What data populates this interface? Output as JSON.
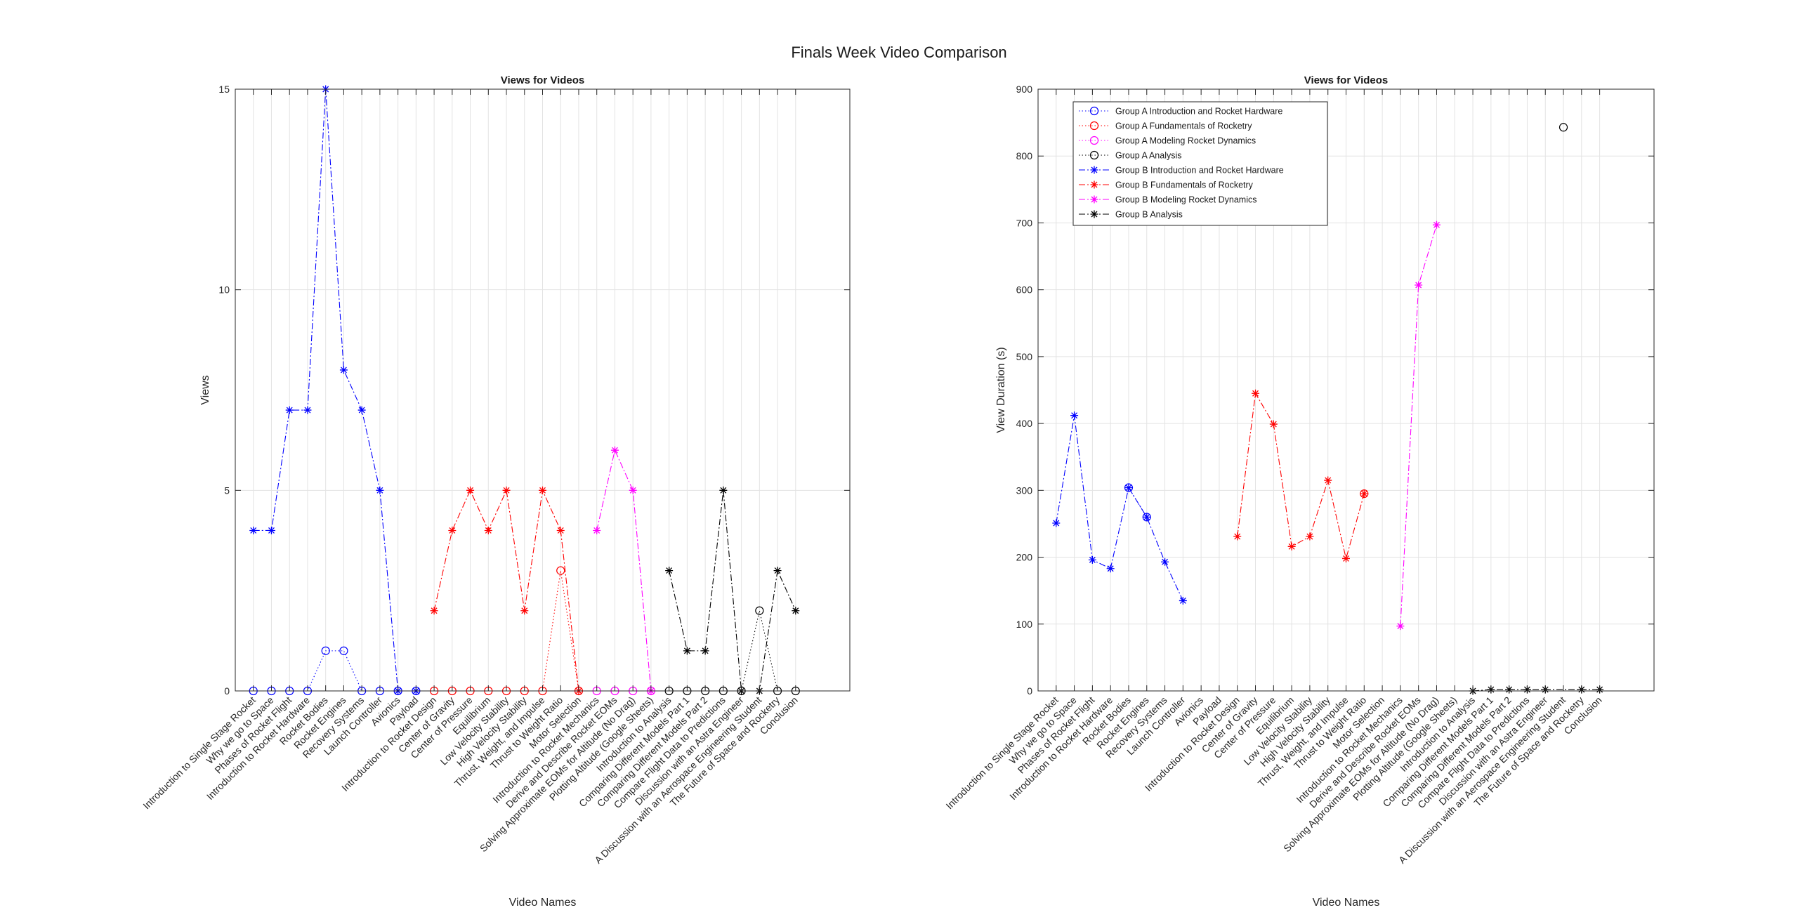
{
  "figure_title": "Finals Week Video Comparison",
  "chart_data": [
    {
      "type": "line",
      "title": "Views for Videos",
      "xlabel": "Video Names",
      "ylabel": "Views",
      "ylim": [
        0,
        15
      ],
      "yticks": [
        0,
        5,
        10,
        15
      ],
      "grid": true,
      "categories": [
        "Introduction to Single Stage Rocket",
        "Why we go to Space",
        "Phases of Rocket Flight",
        "Introduction to Rocket Hardware",
        "Rocket Bodies",
        "Rocket Engines",
        "Recovery Systems",
        "Launch Controller",
        "Avionics",
        "Payload",
        "Introduction to Rocket Design",
        "Center of Gravity",
        "Center of Pressure",
        "Equilibrium",
        "Low Velocity Stability",
        "High Velocity Stability",
        "Thrust, Weight, and Impulse",
        "Thrust to Weight Ratio",
        "Motor Selection",
        "Introduction to Rocket Mechanics",
        "Derive and Describe Rocket EOMs",
        "Solving Approximate EOMs for Altitude (No Drag)",
        "Plotting Altitude (Google Sheets)",
        "Introduction to Analysis",
        "Comparing Different Models Part 1",
        "Comparing Different Models Part 2",
        "Compare Flight Data to Predictions",
        "Discussion with an Astra Engineer",
        "A Discussion with an Aerospace Engineering Student",
        "The Future of Space and Rocketry",
        "Conclusion"
      ],
      "series": [
        {
          "name": "Group A Introduction and Rocket Hardware",
          "color": "#0000ff",
          "marker": "o",
          "style": "dotted",
          "x": [
            1,
            2,
            3,
            4,
            5,
            6,
            7,
            8,
            9,
            10
          ],
          "values": [
            0,
            0,
            0,
            0,
            1,
            1,
            0,
            0,
            0,
            0
          ]
        },
        {
          "name": "Group A Fundamentals of Rocketry",
          "color": "#ff0000",
          "marker": "o",
          "style": "dotted",
          "x": [
            11,
            12,
            13,
            14,
            15,
            16,
            17,
            18,
            19
          ],
          "values": [
            0,
            0,
            0,
            0,
            0,
            0,
            0,
            3,
            0
          ]
        },
        {
          "name": "Group A Modeling Rocket Dynamics",
          "color": "#ff00ff",
          "marker": "o",
          "style": "dotted",
          "x": [
            20,
            21,
            22,
            23
          ],
          "values": [
            0,
            0,
            0,
            0
          ]
        },
        {
          "name": "Group A Analysis",
          "color": "#000000",
          "marker": "o",
          "style": "dotted",
          "x": [
            24,
            25,
            26,
            27,
            28,
            29,
            30,
            31
          ],
          "values": [
            0,
            0,
            0,
            0,
            0,
            2,
            0,
            0
          ]
        },
        {
          "name": "Group B Introduction and Rocket Hardware",
          "color": "#0000ff",
          "marker": "*",
          "style": "dashdot",
          "x": [
            1,
            2,
            3,
            4,
            5,
            6,
            7,
            8,
            9,
            10
          ],
          "values": [
            4,
            4,
            7,
            7,
            15,
            8,
            7,
            5,
            0,
            0
          ]
        },
        {
          "name": "Group B Fundamentals of Rocketry",
          "color": "#ff0000",
          "marker": "*",
          "style": "dashdot",
          "x": [
            11,
            12,
            13,
            14,
            15,
            16,
            17,
            18,
            19
          ],
          "values": [
            2,
            4,
            5,
            4,
            5,
            2,
            5,
            4,
            0
          ]
        },
        {
          "name": "Group B Modeling Rocket Dynamics",
          "color": "#ff00ff",
          "marker": "*",
          "style": "dashdot",
          "x": [
            20,
            21,
            22,
            23
          ],
          "values": [
            4,
            6,
            5,
            0
          ]
        },
        {
          "name": "Group B Analysis",
          "color": "#000000",
          "marker": "*",
          "style": "dashdot",
          "x": [
            24,
            25,
            26,
            27,
            28,
            29,
            30,
            31
          ],
          "values": [
            3,
            1,
            1,
            5,
            0,
            0,
            3,
            2
          ]
        }
      ]
    },
    {
      "type": "line",
      "title": "Views for Videos",
      "xlabel": "Video Names",
      "ylabel": "View Duration (s)",
      "ylim": [
        0,
        900
      ],
      "yticks": [
        0,
        100,
        200,
        300,
        400,
        500,
        600,
        700,
        800,
        900
      ],
      "grid": true,
      "legend": "top-left",
      "categories": [
        "Introduction to Single Stage Rocket",
        "Why we go to Space",
        "Phases of Rocket Flight",
        "Introduction to Rocket Hardware",
        "Rocket Bodies",
        "Rocket Engines",
        "Recovery Systems",
        "Launch Controller",
        "Avionics",
        "Payload",
        "Introduction to Rocket Design",
        "Center of Gravity",
        "Center of Pressure",
        "Equilibrium",
        "Low Velocity Stability",
        "High Velocity Stability",
        "Thrust, Weight, and Impulse",
        "Thrust to Weight Ratio",
        "Motor Selection",
        "Introduction to Rocket Mechanics",
        "Derive and Describe Rocket EOMs",
        "Solving Approximate EOMs for Altitude (No Drag)",
        "Plotting Altitude (Google Sheets)",
        "Introduction to Analysis",
        "Comparing Different Models Part 1",
        "Comparing Different Models Part 2",
        "Compare Flight Data to Predictions",
        "Discussion with an Astra Engineer",
        "A Discussion with an Aerospace Engineering Student",
        "The Future of Space and Rocketry",
        "Conclusion"
      ],
      "series": [
        {
          "name": "Group A Introduction and Rocket Hardware",
          "color": "#0000ff",
          "marker": "o",
          "style": "dotted",
          "x": [
            5,
            6
          ],
          "values": [
            304,
            260
          ]
        },
        {
          "name": "Group A Fundamentals of Rocketry",
          "color": "#ff0000",
          "marker": "o",
          "style": "dotted",
          "x": [
            18
          ],
          "values": [
            295
          ]
        },
        {
          "name": "Group A Modeling Rocket Dynamics",
          "color": "#ff00ff",
          "marker": "o",
          "style": "dotted",
          "x": [],
          "values": []
        },
        {
          "name": "Group A Analysis",
          "color": "#000000",
          "marker": "o",
          "style": "dotted",
          "x": [
            29
          ],
          "values": [
            843
          ]
        },
        {
          "name": "Group B Introduction and Rocket Hardware",
          "color": "#0000ff",
          "marker": "*",
          "style": "dashdot",
          "x": [
            1,
            2,
            3,
            4,
            5,
            6,
            7,
            8
          ],
          "values": [
            251,
            412,
            196,
            183,
            304,
            260,
            193,
            135
          ]
        },
        {
          "name": "Group B Fundamentals of Rocketry",
          "color": "#ff0000",
          "marker": "*",
          "style": "dashdot",
          "x": [
            11,
            12,
            13,
            14,
            15,
            16,
            17,
            18
          ],
          "values": [
            231,
            445,
            399,
            216,
            231,
            315,
            198,
            295
          ]
        },
        {
          "name": "Group B Modeling Rocket Dynamics",
          "color": "#ff00ff",
          "marker": "*",
          "style": "dashdot",
          "x": [
            20,
            21,
            22
          ],
          "values": [
            97,
            607,
            697
          ]
        },
        {
          "name": "Group B Analysis",
          "color": "#000000",
          "marker": "*",
          "style": "dashdot",
          "x": [
            24,
            25,
            26,
            27,
            28,
            30,
            31
          ],
          "values": [
            0,
            2,
            2,
            2,
            2,
            2,
            2
          ]
        }
      ]
    }
  ]
}
